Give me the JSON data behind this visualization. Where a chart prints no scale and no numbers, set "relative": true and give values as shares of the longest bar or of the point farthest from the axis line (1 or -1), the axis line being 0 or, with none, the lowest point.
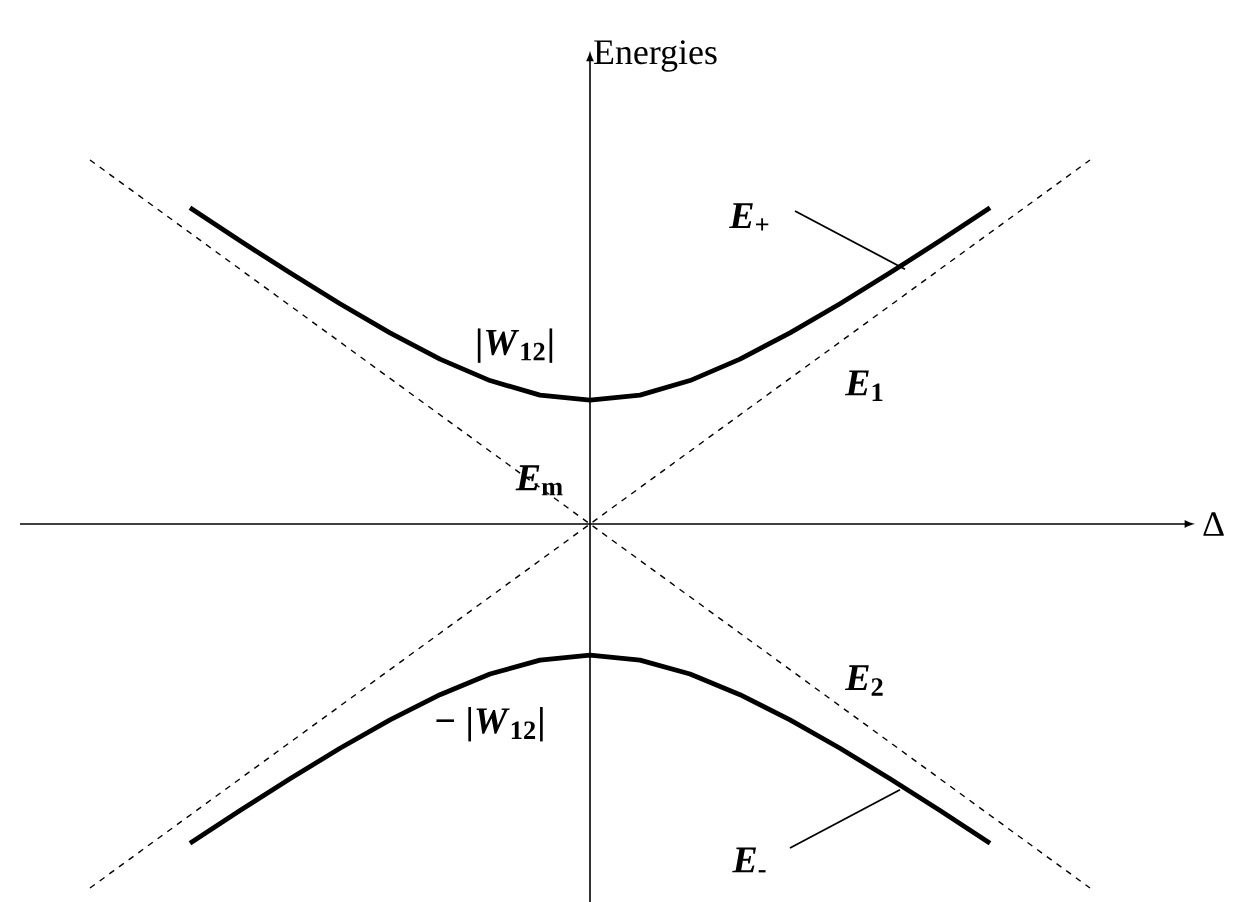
{
  "chart_data": {
    "type": "line",
    "relative": true,
    "xlabel": "Δ",
    "ylabel": "Energies",
    "marker": "none",
    "categories": [
      null,
      null,
      null,
      null,
      null,
      null,
      null,
      null,
      null,
      null,
      null,
      null,
      null,
      null,
      null,
      null,
      null,
      null,
      null,
      null,
      null
    ],
    "series": [
      {
        "name": "*E*$_{+}$",
        "color": "#000000",
        "line_style": "solid",
        "values": [
          null,
          null,
          0.869,
          0.778,
          0.69,
          0.605,
          0.525,
          0.453,
          0.394,
          0.354,
          0.34,
          0.354,
          0.394,
          0.453,
          0.525,
          0.605,
          0.69,
          0.778,
          0.869,
          null,
          null
        ]
      },
      {
        "name": "*E*$_{-}$",
        "color": "#000000",
        "line_style": "solid",
        "values": [
          null,
          null,
          -0.877,
          -0.787,
          -0.7,
          -0.616,
          -0.538,
          -0.469,
          -0.412,
          -0.374,
          -0.36,
          -0.374,
          -0.412,
          -0.469,
          -0.538,
          -0.616,
          -0.7,
          -0.787,
          -0.877,
          null,
          null
        ]
      },
      {
        "name": "*E*$_{1}$",
        "color": "#000000",
        "line_style": "dashed",
        "values": [
          -1,
          -0.9,
          -0.8,
          -0.7,
          -0.6,
          -0.5,
          -0.4,
          -0.3,
          -0.2,
          -0.1,
          0,
          0.1,
          0.2,
          0.3,
          0.4,
          0.5,
          0.6,
          0.7,
          0.8,
          0.9,
          1
        ]
      },
      {
        "name": "*E*$_{2}$",
        "color": "#000000",
        "line_style": "dashed",
        "values": [
          1,
          0.9,
          0.8,
          0.7,
          0.6,
          0.5,
          0.4,
          0.3,
          0.2,
          0.1,
          0,
          -0.1,
          -0.2,
          -0.3,
          -0.4,
          -0.5,
          -0.6,
          -0.7,
          -0.8,
          -0.9,
          -1
        ]
      }
    ],
    "annotations": [
      "*E*$_{m}$",
      "|*W*$_{12}$|",
      "− |*W*$_{12}$|"
    ]
  }
}
